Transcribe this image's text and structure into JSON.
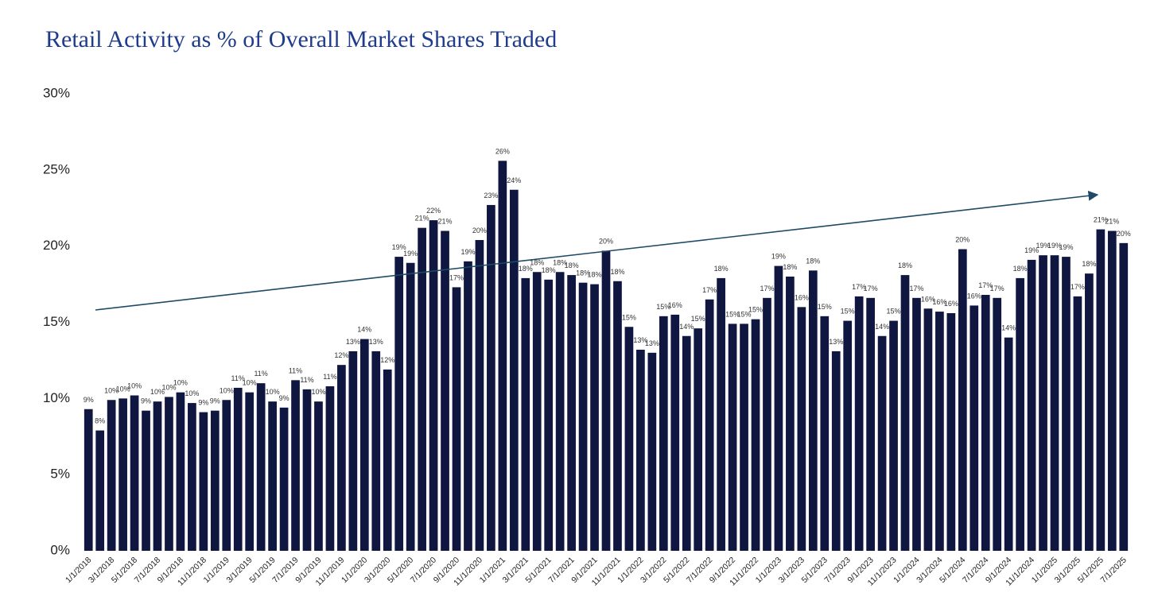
{
  "chart_data": {
    "type": "bar",
    "title": "Retail Activity as % of Overall Market Shares Traded",
    "categories": [
      "1/1/2018",
      null,
      "3/1/2018",
      null,
      "5/1/2018",
      null,
      "7/1/2018",
      null,
      "9/1/2018",
      null,
      "11/1/2018",
      null,
      "1/1/2019",
      null,
      "3/1/2019",
      null,
      "5/1/2019",
      null,
      "7/1/2019",
      null,
      "9/1/2019",
      null,
      "11/1/2019",
      null,
      "1/1/2020",
      null,
      "3/1/2020",
      null,
      "5/1/2020",
      null,
      "7/1/2020",
      null,
      "9/1/2020",
      null,
      "11/1/2020",
      null,
      "1/1/2021",
      null,
      "3/1/2021",
      null,
      "5/1/2021",
      null,
      "7/1/2021",
      null,
      "9/1/2021",
      null,
      "11/1/2021",
      null,
      "1/1/2022",
      null,
      "3/1/2022",
      null,
      "5/1/2022",
      null,
      "7/1/2022",
      null,
      "9/1/2022",
      null,
      "11/1/2022",
      null,
      "1/1/2023",
      null,
      "3/1/2023",
      null,
      "5/1/2023",
      null,
      "7/1/2023",
      null,
      "9/1/2023",
      null,
      "11/1/2023",
      null,
      "1/1/2024",
      null,
      "3/1/2024",
      null,
      "5/1/2024",
      null,
      "7/1/2024",
      null,
      "9/1/2024",
      null,
      "11/1/2024",
      null,
      "1/1/2025",
      null,
      "3/1/2025",
      null,
      "5/1/2025",
      null,
      "7/1/2025"
    ],
    "values": [
      9.3,
      7.9,
      9.9,
      10.0,
      10.2,
      9.2,
      9.8,
      10.1,
      10.4,
      9.7,
      9.1,
      9.2,
      9.9,
      10.7,
      10.4,
      11.0,
      9.8,
      9.4,
      11.2,
      10.6,
      9.8,
      10.8,
      12.2,
      13.1,
      13.9,
      13.1,
      11.9,
      19.3,
      18.9,
      21.2,
      21.7,
      21.0,
      17.3,
      19.0,
      20.4,
      22.7,
      25.6,
      23.7,
      17.9,
      18.3,
      17.8,
      18.3,
      18.1,
      17.6,
      17.5,
      19.7,
      17.7,
      14.7,
      13.2,
      13.0,
      15.4,
      15.5,
      14.1,
      14.6,
      16.5,
      17.9,
      14.9,
      14.9,
      15.2,
      16.6,
      18.7,
      18.0,
      16.0,
      18.4,
      15.4,
      13.1,
      15.1,
      16.7,
      16.6,
      14.1,
      15.1,
      18.1,
      16.6,
      15.9,
      15.7,
      15.6,
      19.8,
      16.1,
      16.8,
      16.6,
      14.0,
      17.9,
      19.1,
      19.4,
      19.4,
      19.3,
      16.7,
      18.2,
      21.1,
      21.0,
      20.2
    ],
    "value_labels": [
      "9%",
      "8%",
      "10%",
      "10%",
      "10%",
      "9%",
      "10%",
      "10%",
      "10%",
      "10%",
      "9%",
      "9%",
      "10%",
      "11%",
      "10%",
      "11%",
      "10%",
      "9%",
      "11%",
      "11%",
      "10%",
      "11%",
      "12%",
      "13%",
      "14%",
      "13%",
      "12%",
      "19%",
      "19%",
      "21%",
      "22%",
      "21%",
      "17%",
      "19%",
      "20%",
      "23%",
      "26%",
      "24%",
      "18%",
      "18%",
      "18%",
      "18%",
      "18%",
      "18%",
      "18%",
      "20%",
      "18%",
      "15%",
      "13%",
      "13%",
      "15%",
      "16%",
      "14%",
      "15%",
      "17%",
      "18%",
      "15%",
      "15%",
      "15%",
      "17%",
      "19%",
      "18%",
      "16%",
      "18%",
      "15%",
      "13%",
      "15%",
      "17%",
      "17%",
      "14%",
      "15%",
      "18%",
      "17%",
      "16%",
      "16%",
      "16%",
      "20%",
      "16%",
      "17%",
      "17%",
      "14%",
      "18%",
      "19%",
      "19%",
      "19%",
      "19%",
      "17%",
      "18%",
      "21%",
      "21%",
      "20%"
    ],
    "color": "#0f1640",
    "ylim": [
      0,
      30
    ],
    "yticks": [
      {
        "value": 0,
        "label": "0%"
      },
      {
        "value": 5,
        "label": "5%"
      },
      {
        "value": 10,
        "label": "10%"
      },
      {
        "value": 15,
        "label": "15%"
      },
      {
        "value": 20,
        "label": "20%"
      },
      {
        "value": 25,
        "label": "25%"
      },
      {
        "value": 30,
        "label": "30%"
      }
    ],
    "grid": false
  }
}
